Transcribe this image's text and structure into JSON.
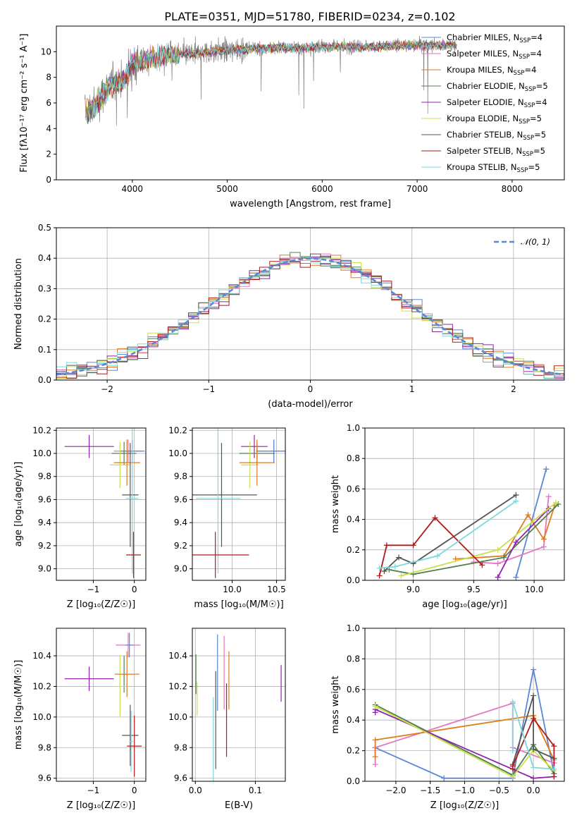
{
  "figure_title": "PLATE=0351, MJD=51780, FIBERID=0234, z=0.102",
  "colors": {
    "Chabrier MILES": "#5b87d6",
    "Salpeter MILES": "#e377c2",
    "Kroupa MILES": "#e07b1f",
    "Chabrier ELODIE": "#4f7f4f",
    "Salpeter ELODIE": "#8e24aa",
    "Kroupa ELODIE": "#c8e04a",
    "Chabrier STELIB": "#555555",
    "Salpeter STELIB": "#b11b1b",
    "Kroupa STELIB": "#7fd8d8"
  },
  "chart_data": [
    {
      "id": "spectrum",
      "type": "line",
      "title": "PLATE=0351, MJD=51780, FIBERID=0234, z=0.102",
      "xlabel": "wavelength [Angstrom, rest frame]",
      "ylabel": "Flux [fλ10⁻¹⁷ erg cm⁻² s⁻¹ A⁻¹]",
      "xlim": [
        3200,
        8550
      ],
      "ylim": [
        0,
        12
      ],
      "xticks": [
        4000,
        5000,
        6000,
        7000,
        8000
      ],
      "yticks": [
        0,
        2,
        4,
        6,
        8,
        10
      ],
      "grid": false,
      "legend_position": "upper-right",
      "data_color": "#808080",
      "continuum": {
        "x": [
          3500,
          3600,
          3700,
          3800,
          3900,
          4000,
          4200,
          4400,
          4600,
          4800,
          5000,
          5200,
          5400,
          5600,
          5800,
          6000,
          6200,
          6400,
          6600,
          6800,
          7000,
          7200,
          7400
        ],
        "y": [
          5.3,
          5.7,
          6.9,
          7.6,
          7.8,
          9.0,
          9.5,
          9.7,
          9.8,
          10.0,
          10.1,
          10.2,
          10.3,
          10.3,
          10.3,
          10.4,
          10.4,
          10.4,
          10.4,
          10.5,
          10.5,
          10.5,
          10.5
        ]
      },
      "series": [
        {
          "name": "Chabrier MILES, N_SSP=4",
          "label_prefix": "Chabrier MILES, N",
          "label_sub": "SSP",
          "label_suffix": "=4"
        },
        {
          "name": "Salpeter MILES, N_SSP=4",
          "label_prefix": "Salpeter MILES, N",
          "label_sub": "SSP",
          "label_suffix": "=4"
        },
        {
          "name": "Kroupa MILES, N_SSP=4",
          "label_prefix": "Kroupa MILES, N",
          "label_sub": "SSP",
          "label_suffix": "=4"
        },
        {
          "name": "Chabrier ELODIE, N_SSP=5",
          "label_prefix": "Chabrier ELODIE, N",
          "label_sub": "SSP",
          "label_suffix": "=5"
        },
        {
          "name": "Salpeter ELODIE, N_SSP=4",
          "label_prefix": "Salpeter ELODIE, N",
          "label_sub": "SSP",
          "label_suffix": "=4"
        },
        {
          "name": "Kroupa ELODIE, N_SSP=5",
          "label_prefix": "Kroupa ELODIE, N",
          "label_sub": "SSP",
          "label_suffix": "=5"
        },
        {
          "name": "Chabrier STELIB, N_SSP=5",
          "label_prefix": "Chabrier STELIB, N",
          "label_sub": "SSP",
          "label_suffix": "=5"
        },
        {
          "name": "Salpeter STELIB, N_SSP=5",
          "label_prefix": "Salpeter STELIB, N",
          "label_sub": "SSP",
          "label_suffix": "=5"
        },
        {
          "name": "Kroupa STELIB, N_SSP=5",
          "label_prefix": "Kroupa STELIB, N",
          "label_sub": "SSP",
          "label_suffix": "=5"
        }
      ]
    },
    {
      "id": "residuals",
      "type": "histogram",
      "xlabel": "(data-model)/error",
      "ylabel": "Normed distribution",
      "xlim": [
        -2.5,
        2.5
      ],
      "ylim": [
        0,
        0.5
      ],
      "xticks": [
        -2,
        -1,
        0,
        1,
        2
      ],
      "yticks": [
        0.0,
        0.1,
        0.2,
        0.3,
        0.4,
        0.5
      ],
      "grid": true,
      "legend_position": "upper-right",
      "reference_curve": {
        "label": "𝒩(0, 1)",
        "mean": 0,
        "sigma": 1,
        "style": "dashed",
        "color": "#5b87d6"
      },
      "bin_width": 0.1
    },
    {
      "id": "age_vs_Z",
      "type": "errorbar",
      "xlabel": "Z [log₁₀(Z/Z☉)]",
      "ylabel": "age  [log₁₀(age/yr)]",
      "xlim": [
        -1.9,
        0.28
      ],
      "ylim": [
        8.9,
        10.22
      ],
      "xticks": [
        -1,
        0
      ],
      "yticks": [
        9.0,
        9.2,
        9.4,
        9.6,
        9.8,
        10.0,
        10.2
      ],
      "grid": true,
      "points": [
        {
          "series": "Salpeter ELODIE",
          "x": -1.1,
          "xerr": 0.6,
          "y": 10.06,
          "yerr": 0.1
        },
        {
          "series": "Salpeter MILES",
          "x": -0.15,
          "xerr": 0.35,
          "y": 10.02,
          "yerr": 0.1
        },
        {
          "series": "Chabrier MILES",
          "x": -0.05,
          "xerr": 0.3,
          "y": 10.02,
          "yerr": 0.1
        },
        {
          "series": "Chabrier ELODIE",
          "x": -0.25,
          "xerr": 0.3,
          "y": 10.0,
          "yerr": 0.1
        },
        {
          "series": "Kroupa ELODIE",
          "x": -0.35,
          "xerr": 0.25,
          "y": 9.9,
          "yerr": 0.2
        },
        {
          "series": "Kroupa MILES",
          "x": -0.18,
          "xerr": 0.32,
          "y": 9.92,
          "yerr": 0.2
        },
        {
          "series": "Chabrier STELIB",
          "x": -0.1,
          "xerr": 0.2,
          "y": 9.64,
          "yerr": 0.45
        },
        {
          "series": "Kroupa STELIB",
          "x": -0.05,
          "xerr": 0.15,
          "y": 9.61,
          "yerr": 0.65
        },
        {
          "series": "Salpeter STELIB",
          "x": -0.02,
          "xerr": 0.18,
          "y": 9.12,
          "yerr": 0.2
        }
      ]
    },
    {
      "id": "age_vs_mass",
      "type": "errorbar",
      "xlabel": "mass [log₁₀(M/M☉)]",
      "ylabel": "",
      "xlim": [
        9.55,
        10.6
      ],
      "ylim": [
        8.9,
        10.22
      ],
      "xticks": [
        10.0,
        10.5
      ],
      "yticks": [
        9.0,
        9.2,
        9.4,
        9.6,
        9.8,
        10.0,
        10.2
      ],
      "grid": true,
      "points": [
        {
          "series": "Salpeter ELODIE",
          "x": 10.25,
          "xerr": 0.15,
          "y": 10.06,
          "yerr": 0.1
        },
        {
          "series": "Salpeter MILES",
          "x": 10.47,
          "xerr": 0.2,
          "y": 10.02,
          "yerr": 0.1
        },
        {
          "series": "Chabrier MILES",
          "x": 10.47,
          "xerr": 0.2,
          "y": 10.02,
          "yerr": 0.1
        },
        {
          "series": "Chabrier ELODIE",
          "x": 10.28,
          "xerr": 0.2,
          "y": 10.0,
          "yerr": 0.1
        },
        {
          "series": "Kroupa ELODIE",
          "x": 10.2,
          "xerr": 0.1,
          "y": 9.9,
          "yerr": 0.2
        },
        {
          "series": "Kroupa MILES",
          "x": 10.28,
          "xerr": 0.2,
          "y": 9.92,
          "yerr": 0.2
        },
        {
          "series": "Chabrier STELIB",
          "x": 9.88,
          "xerr": 0.4,
          "y": 9.64,
          "yerr": 0.45
        },
        {
          "series": "Kroupa STELIB",
          "x": 9.84,
          "xerr": 0.25,
          "y": 9.61,
          "yerr": 0.65
        },
        {
          "series": "Salpeter STELIB",
          "x": 9.81,
          "xerr": 0.38,
          "y": 9.12,
          "yerr": 0.2
        }
      ]
    },
    {
      "id": "weight_vs_age",
      "type": "line",
      "xlabel": "age  [log₁₀(age/yr)]",
      "ylabel": "mass weight",
      "xlim": [
        8.6,
        10.25
      ],
      "ylim": [
        0,
        1.0
      ],
      "xticks": [
        9.0,
        9.5,
        10.0
      ],
      "yticks": [
        0.0,
        0.2,
        0.4,
        0.6,
        0.8,
        1.0
      ],
      "grid": true,
      "series": [
        {
          "name": "Chabrier MILES",
          "x": [
            9.85,
            10.1
          ],
          "y": [
            0.02,
            0.73
          ]
        },
        {
          "name": "Salpeter MILES",
          "x": [
            9.5,
            9.7,
            10.08,
            10.12
          ],
          "y": [
            0.12,
            0.11,
            0.22,
            0.55
          ]
        },
        {
          "name": "Kroupa MILES",
          "x": [
            9.35,
            9.75,
            9.95,
            10.08,
            10.17
          ],
          "y": [
            0.14,
            0.16,
            0.43,
            0.27,
            0.49
          ]
        },
        {
          "name": "Chabrier ELODIE",
          "x": [
            8.8,
            9.0,
            9.75,
            10.2
          ],
          "y": [
            0.07,
            0.04,
            0.15,
            0.5
          ]
        },
        {
          "name": "Salpeter ELODIE",
          "x": [
            9.7,
            9.85,
            10.12
          ],
          "y": [
            0.02,
            0.25,
            0.47
          ]
        },
        {
          "name": "Kroupa ELODIE",
          "x": [
            8.9,
            9.7,
            10.18
          ],
          "y": [
            0.03,
            0.2,
            0.51
          ]
        },
        {
          "name": "Chabrier STELIB",
          "x": [
            8.76,
            8.88,
            9.0,
            9.85
          ],
          "y": [
            0.06,
            0.15,
            0.11,
            0.56
          ]
        },
        {
          "name": "Salpeter STELIB",
          "x": [
            8.72,
            8.78,
            9.0,
            9.18,
            9.57
          ],
          "y": [
            0.03,
            0.23,
            0.23,
            0.41,
            0.1
          ]
        },
        {
          "name": "Kroupa STELIB",
          "x": [
            8.72,
            8.85,
            9.2,
            9.85
          ],
          "y": [
            0.08,
            0.09,
            0.16,
            0.52
          ]
        }
      ]
    },
    {
      "id": "mass_vs_Z",
      "type": "errorbar",
      "xlabel": "Z [log₁₀(Z/Z☉)]",
      "ylabel": "mass [log₁₀(M/M☉)]",
      "xlim": [
        -1.9,
        0.28
      ],
      "ylim": [
        9.58,
        10.58
      ],
      "xticks": [
        -1,
        0
      ],
      "yticks": [
        9.6,
        9.8,
        10.0,
        10.2,
        10.4
      ],
      "grid": true,
      "points": [
        {
          "series": "Salpeter ELODIE",
          "x": -1.1,
          "xerr": 0.6,
          "y": 10.25,
          "yerr": 0.08
        },
        {
          "series": "Salpeter MILES",
          "x": -0.15,
          "xerr": 0.3,
          "y": 10.47,
          "yerr": 0.08
        },
        {
          "series": "Chabrier MILES",
          "x": -0.12,
          "xerr": 0.1,
          "y": 10.47,
          "yerr": 0.08
        },
        {
          "series": "Chabrier ELODIE",
          "x": -0.25,
          "xerr": 0.05,
          "y": 10.28,
          "yerr": 0.12
        },
        {
          "series": "Kroupa ELODIE",
          "x": -0.35,
          "xerr": 0.2,
          "y": 10.2,
          "yerr": 0.2
        },
        {
          "series": "Kroupa MILES",
          "x": -0.18,
          "xerr": 0.3,
          "y": 10.28,
          "yerr": 0.15
        },
        {
          "series": "Chabrier STELIB",
          "x": -0.1,
          "xerr": 0.2,
          "y": 9.88,
          "yerr": 0.2
        },
        {
          "series": "Kroupa STELIB",
          "x": -0.08,
          "xerr": 0.05,
          "y": 9.84,
          "yerr": 0.2
        },
        {
          "series": "Salpeter STELIB",
          "x": 0.0,
          "xerr": 0.18,
          "y": 9.81,
          "yerr": 0.2
        }
      ]
    },
    {
      "id": "mass_vs_EBV",
      "type": "errorbar",
      "xlabel": "E(B-V)",
      "ylabel": "",
      "xlim": [
        -0.005,
        0.15
      ],
      "ylim": [
        9.58,
        10.58
      ],
      "xticks": [
        0.0,
        0.1
      ],
      "yticks": [
        9.6,
        9.8,
        10.0,
        10.2,
        10.4
      ],
      "grid": true,
      "points": [
        {
          "series": "Salpeter ELODIE",
          "x": 0.143,
          "y": 10.22,
          "yerr": 0.12
        },
        {
          "series": "Salpeter MILES",
          "x": 0.048,
          "y": 10.29,
          "yerr": 0.24
        },
        {
          "series": "Chabrier MILES",
          "x": 0.037,
          "y": 10.29,
          "yerr": 0.25
        },
        {
          "series": "Chabrier ELODIE",
          "x": 0.001,
          "y": 10.28,
          "yerr": 0.13
        },
        {
          "series": "Kroupa ELODIE",
          "x": 0.003,
          "y": 10.12,
          "yerr": 0.11
        },
        {
          "series": "Kroupa MILES",
          "x": 0.056,
          "y": 10.24,
          "yerr": 0.19
        },
        {
          "series": "Chabrier STELIB",
          "x": 0.034,
          "y": 9.98,
          "yerr": 0.32
        },
        {
          "series": "Kroupa STELIB",
          "x": 0.03,
          "y": 9.82,
          "yerr": 0.31
        },
        {
          "series": "Salpeter STELIB",
          "x": 0.052,
          "y": 9.98,
          "yerr": 0.24
        }
      ]
    },
    {
      "id": "weight_vs_Z",
      "type": "line",
      "xlabel": "Z [log₁₀(Z/Z☉)]",
      "ylabel": "mass weight",
      "xlim": [
        -2.45,
        0.45
      ],
      "ylim": [
        0,
        1.0
      ],
      "xticks": [
        -2.0,
        -1.5,
        -1.0,
        -0.5,
        0.0
      ],
      "yticks": [
        0.0,
        0.2,
        0.4,
        0.6,
        0.8,
        1.0
      ],
      "grid": true,
      "series": [
        {
          "name": "Chabrier MILES",
          "x": [
            -2.3,
            -1.3,
            -0.3,
            0.0,
            0.3
          ],
          "y": [
            0.22,
            0.02,
            0.02,
            0.73,
            0.05
          ]
        },
        {
          "name": "Salpeter MILES",
          "x": [
            -2.3,
            -2.3,
            -0.3,
            -0.3,
            0.3
          ],
          "y": [
            0.11,
            0.22,
            0.51,
            0.22,
            0.12
          ]
        },
        {
          "name": "Kroupa MILES",
          "x": [
            -2.3,
            -2.3,
            0.0,
            0.3
          ],
          "y": [
            0.16,
            0.27,
            0.43,
            0.14
          ]
        },
        {
          "name": "Chabrier ELODIE",
          "x": [
            -2.3,
            -0.3,
            0.0,
            0.3
          ],
          "y": [
            0.5,
            0.04,
            0.24,
            0.05
          ]
        },
        {
          "name": "Salpeter ELODIE",
          "x": [
            -2.3,
            -2.3,
            0.0,
            0.3
          ],
          "y": [
            0.45,
            0.47,
            0.02,
            0.03
          ]
        },
        {
          "name": "Kroupa ELODIE",
          "x": [
            -2.3,
            -0.3,
            0.0,
            0.3
          ],
          "y": [
            0.49,
            0.03,
            0.2,
            0.07
          ]
        },
        {
          "name": "Chabrier STELIB",
          "x": [
            -0.3,
            0.0,
            0.0,
            0.3
          ],
          "y": [
            0.11,
            0.56,
            0.21,
            0.15
          ]
        },
        {
          "name": "Salpeter STELIB",
          "x": [
            -0.3,
            -0.3,
            0.0,
            0.3,
            0.3
          ],
          "y": [
            0.08,
            0.1,
            0.41,
            0.23,
            0.03
          ]
        },
        {
          "name": "Kroupa STELIB",
          "x": [
            -0.3,
            -0.3,
            0.0,
            0.3
          ],
          "y": [
            0.2,
            0.52,
            0.09,
            0.08
          ]
        }
      ]
    }
  ]
}
